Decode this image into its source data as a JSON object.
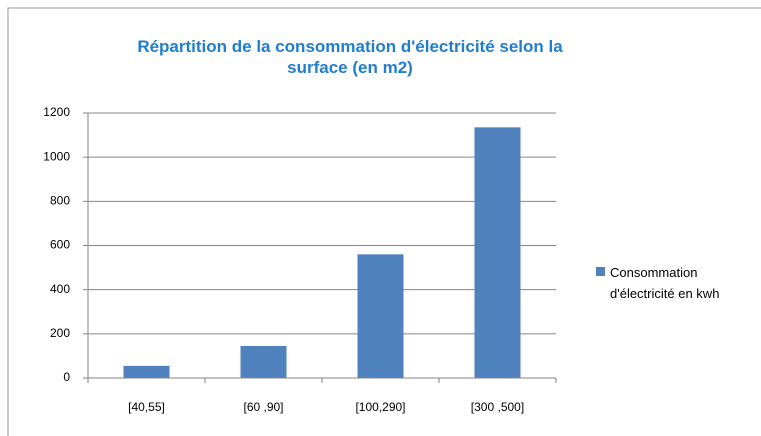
{
  "chart_data": {
    "type": "bar",
    "title": "Répartition de la consommation d'électricité selon la surface (en m2)",
    "categories": [
      "[40,55]",
      "[60 ,90]",
      "[100,290]",
      "[300 ,500]"
    ],
    "series": [
      {
        "name": "Consommation d'électricité en kwh",
        "color": "#4f81bd",
        "values": [
          55,
          145,
          560,
          1135
        ]
      }
    ],
    "ylim": [
      0,
      1200
    ],
    "yticks": [
      0,
      200,
      400,
      600,
      800,
      1000,
      1200
    ],
    "grid": true,
    "legend": "right"
  }
}
